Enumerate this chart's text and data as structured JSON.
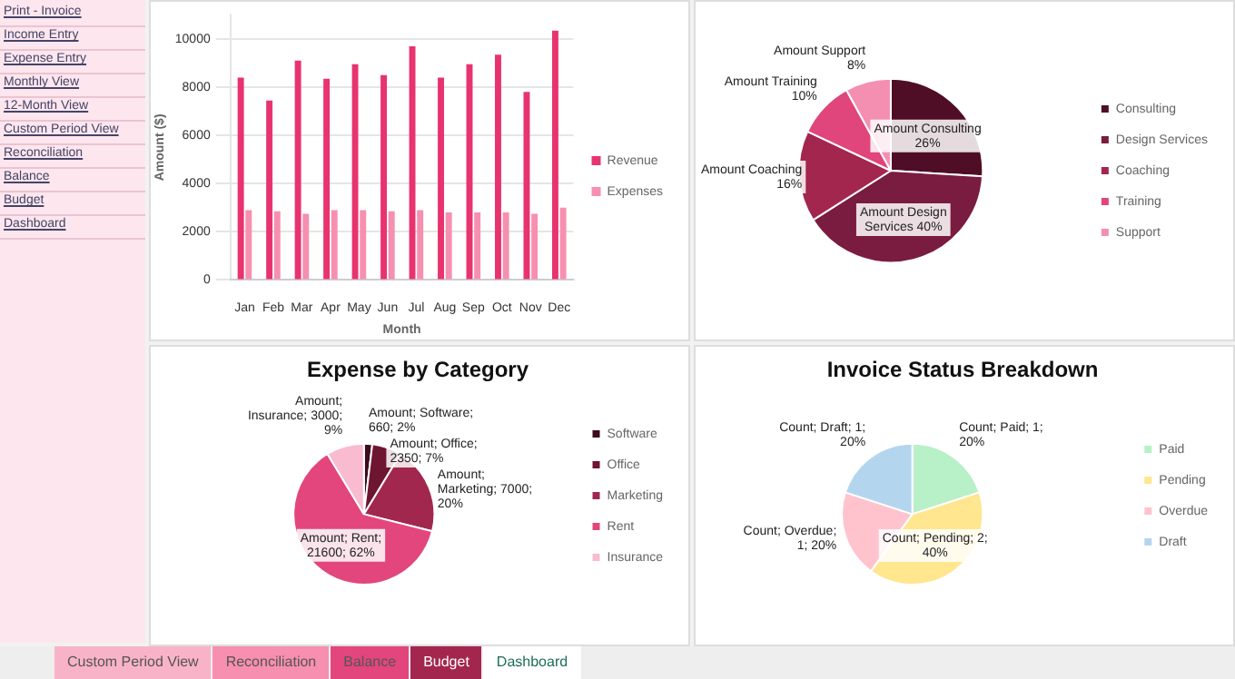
{
  "chart_data": [
    {
      "type": "other",
      "annotations": [
        "Print - Invoice",
        "Income Entry",
        "Expense Entry",
        "Monthly View",
        "12-Month View",
        "Custom Period View",
        "Reconciliation",
        "Balance",
        "Budget",
        "Dashboard"
      ]
    },
    {
      "type": "bar",
      "categories": [
        "Jan",
        "Feb",
        "Mar",
        "Apr",
        "May",
        "Jun",
        "Jul",
        "Aug",
        "Sep",
        "Oct",
        "Nov",
        "Dec"
      ],
      "xlabel": "Month",
      "ylabel": "Amount ($)",
      "ylim": [
        0,
        11000
      ],
      "yticks": [
        0,
        2000,
        4000,
        6000,
        8000,
        10000
      ],
      "grid": "y",
      "legend": "right",
      "series": [
        {
          "name": "Revenue",
          "color": "#e8336f",
          "values": [
            8400,
            7450,
            9100,
            8350,
            8950,
            8500,
            9700,
            8400,
            8950,
            9350,
            7800,
            10350
          ]
        },
        {
          "name": "Expenses",
          "color": "#f78fb0",
          "values": [
            2900,
            2850,
            2750,
            2900,
            2900,
            2850,
            2900,
            2800,
            2800,
            2800,
            2750,
            3000
          ]
        }
      ]
    },
    {
      "type": "pie",
      "categories": [
        "Consulting",
        "Design Services",
        "Coaching",
        "Training",
        "Support"
      ],
      "values": [
        26,
        40,
        16,
        10,
        8
      ],
      "colors": [
        "#4f0e26",
        "#7a1b40",
        "#a3264f",
        "#e0457b",
        "#f48fb1"
      ],
      "legend": "right",
      "value_labels": [
        "Amount Consulting 26%",
        "Amount Design Services 40%",
        "Amount Coaching 16%",
        "Amount Training 10%",
        "Amount Support 8%"
      ]
    },
    {
      "type": "pie",
      "title": "Expense by Category",
      "categories": [
        "Software",
        "Office",
        "Marketing",
        "Rent",
        "Insurance"
      ],
      "values": [
        660,
        2350,
        7000,
        21600,
        3000
      ],
      "colors": [
        "#3d0a1e",
        "#6e1532",
        "#a2274f",
        "#e2467c",
        "#f8bbd0"
      ],
      "legend": "right",
      "value_labels": [
        "Amount; Software; 660; 2%",
        "Amount; Office; 2350; 7%",
        "Amount; Marketing; 7000; 20%",
        "Amount; Rent; 21600; 62%",
        "Amount; Insurance; 3000; 9%"
      ]
    },
    {
      "type": "pie",
      "title": "Invoice Status Breakdown",
      "categories": [
        "Paid",
        "Pending",
        "Overdue",
        "Draft"
      ],
      "values": [
        1,
        2,
        1,
        1
      ],
      "colors": [
        "#b8f0c8",
        "#ffe68f",
        "#ffc3ce",
        "#b3d6ee"
      ],
      "legend": "right",
      "value_labels": [
        "Count; Paid; 1; 20%",
        "Count; Pending; 2; 40%",
        "Count; Overdue; 1; 20%",
        "Count; Draft; 1; 20%"
      ]
    },
    {
      "type": "other",
      "annotations": [
        "Custom Period View",
        "Reconciliation",
        "Balance",
        "Budget",
        "Dashboard"
      ]
    }
  ]
}
